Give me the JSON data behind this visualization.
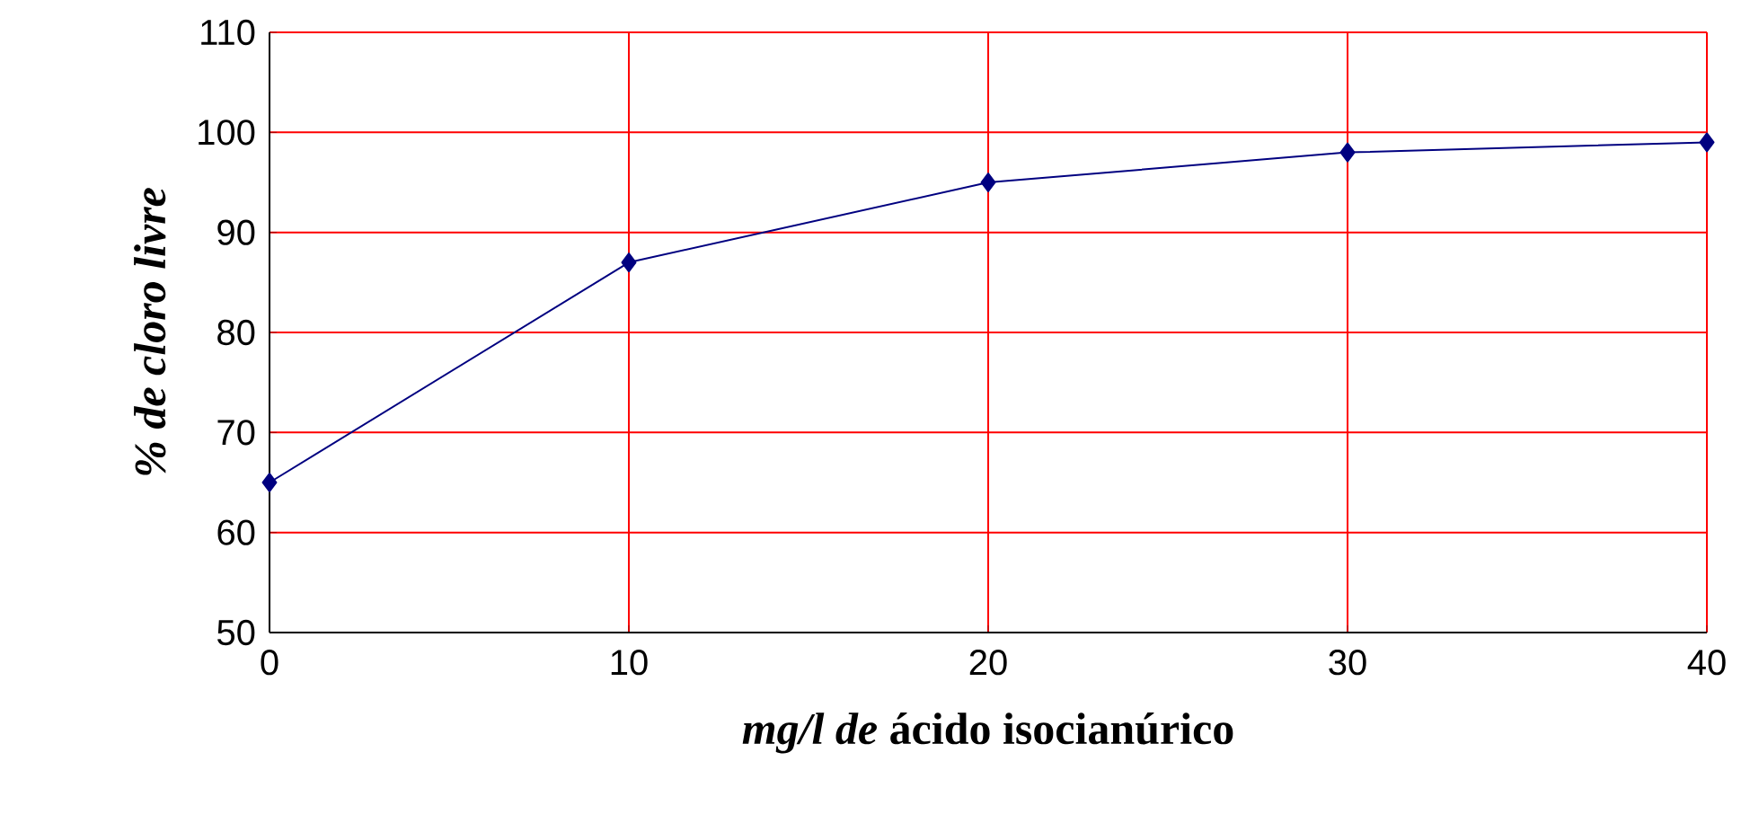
{
  "chart_data": {
    "type": "line",
    "xlabel": "*mg/l de* ácido isocianúrico",
    "ylabel": "% de cloro livre",
    "x": [
      0,
      10,
      20,
      30,
      40
    ],
    "series": [
      {
        "color": "#000080",
        "values": [
          65,
          87,
          95,
          98,
          99
        ]
      }
    ],
    "xlim": [
      0,
      40
    ],
    "xticks": [
      0,
      10,
      20,
      30,
      40
    ],
    "ylim": [
      50,
      110
    ],
    "yticks": [
      50,
      60,
      70,
      80,
      90,
      100,
      110
    ],
    "grid": true,
    "marker": "diamond",
    "line_style": "solid"
  }
}
